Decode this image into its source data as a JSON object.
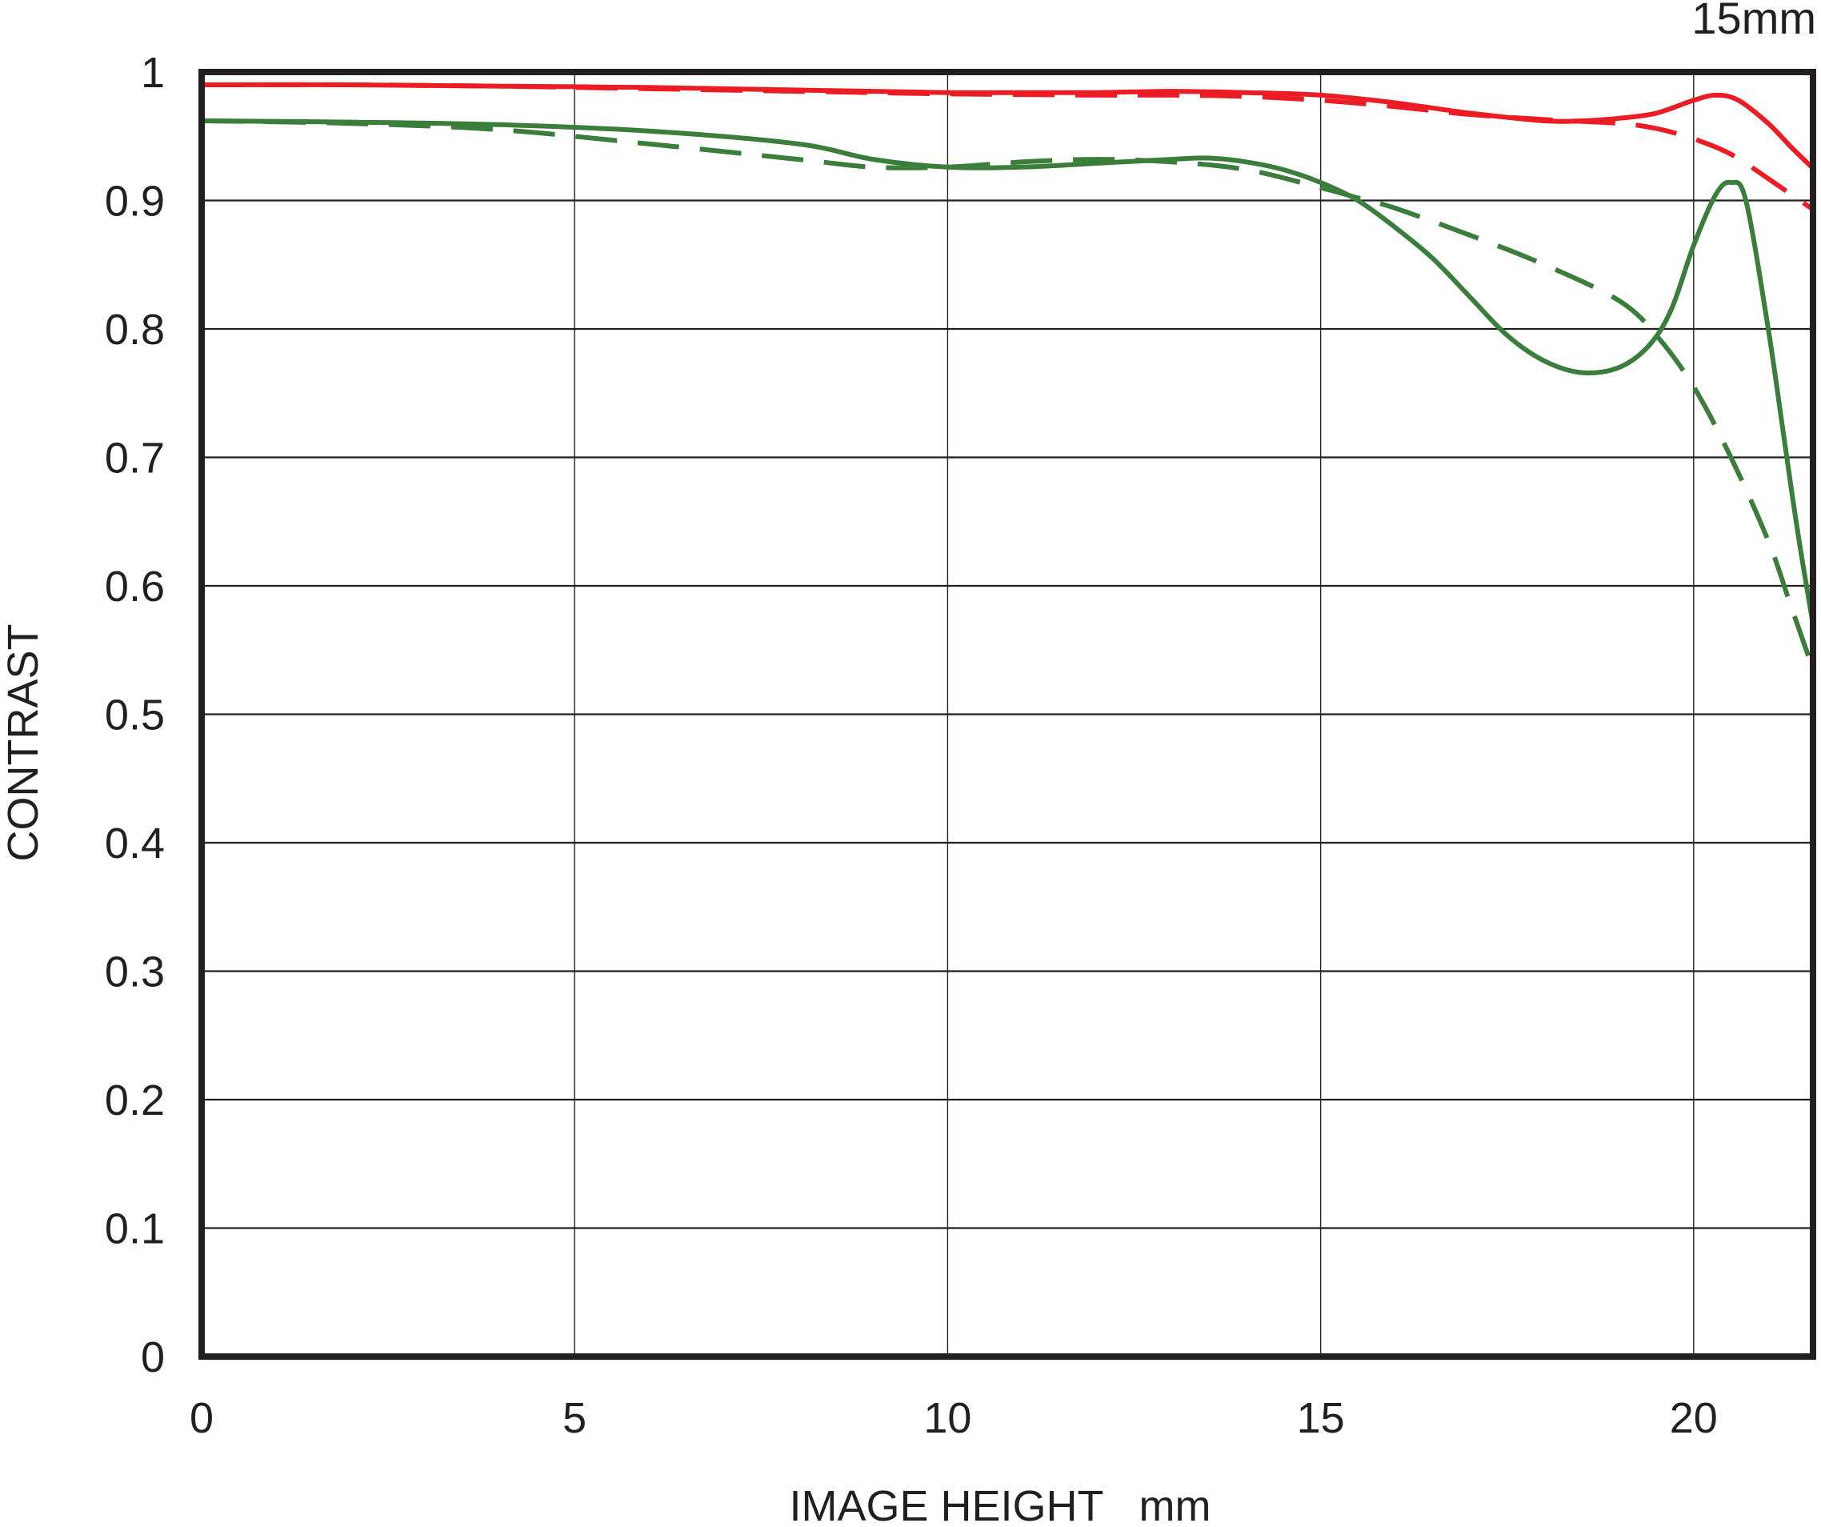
{
  "chart_data": {
    "type": "line",
    "title": "15mm",
    "xlabel": "IMAGE HEIGHT   mm",
    "ylabel": "CONTRAST",
    "xlim": [
      0,
      21.6
    ],
    "ylim": [
      0,
      1
    ],
    "x_ticks": [
      0,
      5,
      10,
      15,
      20
    ],
    "x_tick_labels": [
      "0",
      "5",
      "10",
      "15",
      "20"
    ],
    "y_ticks": [
      0,
      0.1,
      0.2,
      0.3,
      0.4,
      0.5,
      0.6,
      0.7,
      0.8,
      0.9,
      1
    ],
    "y_tick_labels": [
      "0",
      "0.1",
      "0.2",
      "0.3",
      "0.4",
      "0.5",
      "0.6",
      "0.7",
      "0.8",
      "0.9",
      "1"
    ],
    "grid": true,
    "series": [
      {
        "color": "#ec1c24",
        "dash": "solid",
        "x": [
          0,
          2,
          4,
          6,
          8,
          10,
          11,
          12,
          13,
          14,
          15,
          16,
          17,
          18,
          18.5,
          19,
          19.5,
          20,
          20.3,
          20.6,
          21,
          21.3,
          21.6
        ],
        "y": [
          0.99,
          0.99,
          0.989,
          0.988,
          0.986,
          0.984,
          0.984,
          0.984,
          0.985,
          0.984,
          0.982,
          0.976,
          0.968,
          0.962,
          0.962,
          0.964,
          0.968,
          0.978,
          0.982,
          0.978,
          0.96,
          0.942,
          0.925
        ]
      },
      {
        "color": "#ec1c24",
        "dash": "dashed",
        "x": [
          0,
          2,
          4,
          6,
          8,
          10,
          12,
          13,
          14,
          15,
          16,
          17,
          18,
          19,
          19.5,
          20,
          20.5,
          21,
          21.3,
          21.6
        ],
        "y": [
          0.99,
          0.99,
          0.989,
          0.987,
          0.985,
          0.983,
          0.982,
          0.982,
          0.981,
          0.978,
          0.973,
          0.967,
          0.963,
          0.96,
          0.956,
          0.948,
          0.936,
          0.917,
          0.905,
          0.893
        ]
      },
      {
        "color": "#3b7d3a",
        "dash": "solid",
        "x": [
          0,
          2,
          4,
          6,
          8,
          9,
          10,
          11,
          12,
          13,
          13.5,
          14,
          14.5,
          15,
          15.5,
          16,
          16.5,
          17,
          17.5,
          18,
          18.5,
          19,
          19.4,
          19.7,
          20,
          20.3,
          20.5,
          20.7,
          21,
          21.2,
          21.4,
          21.6
        ],
        "y": [
          0.962,
          0.961,
          0.959,
          0.954,
          0.944,
          0.932,
          0.926,
          0.926,
          0.929,
          0.932,
          0.933,
          0.93,
          0.924,
          0.914,
          0.9,
          0.879,
          0.855,
          0.825,
          0.795,
          0.775,
          0.766,
          0.77,
          0.787,
          0.815,
          0.865,
          0.905,
          0.914,
          0.9,
          0.8,
          0.72,
          0.64,
          0.57
        ]
      },
      {
        "color": "#3b7d3a",
        "dash": "dashed",
        "x": [
          0,
          2,
          4,
          6,
          8,
          9,
          10,
          11,
          12,
          13,
          14,
          15,
          15.5,
          16,
          17,
          18,
          19,
          19.5,
          20,
          20.5,
          21,
          21.3,
          21.6
        ],
        "y": [
          0.962,
          0.96,
          0.955,
          0.944,
          0.932,
          0.926,
          0.926,
          0.93,
          0.932,
          0.93,
          0.924,
          0.91,
          0.902,
          0.894,
          0.873,
          0.85,
          0.822,
          0.795,
          0.755,
          0.7,
          0.635,
          0.585,
          0.535
        ]
      }
    ]
  }
}
